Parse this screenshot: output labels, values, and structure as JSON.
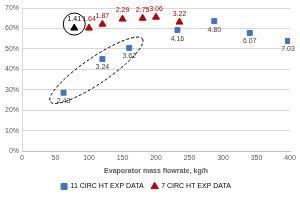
{
  "chart_data": {
    "type": "scatter",
    "xlabel": "Evaporator mass flowrate, kg/h",
    "xlim": [
      0,
      400
    ],
    "xticks": [
      0,
      50,
      100,
      150,
      200,
      250,
      300,
      350,
      400
    ],
    "ylim": [
      0,
      70
    ],
    "yticks": [
      {
        "value": 0,
        "label": "0%"
      },
      {
        "value": 10,
        "label": "10%"
      },
      {
        "value": 20,
        "label": "20%"
      },
      {
        "value": 30,
        "label": "30%"
      },
      {
        "value": 40,
        "label": "40%"
      },
      {
        "value": 50,
        "label": "50%"
      },
      {
        "value": 60,
        "label": "60%"
      },
      {
        "value": 70,
        "label": "70%"
      }
    ],
    "grid": "y",
    "legend": "bottom",
    "series": [
      {
        "name": "11 CIRC HT EXP DATA",
        "color": "#4472c4",
        "marker": "square",
        "x": [
          62,
          120,
          160,
          232,
          287,
          340,
          397
        ],
        "values": [
          28.6,
          45.1,
          50.5,
          59.2,
          63.6,
          57.8,
          53.9
        ],
        "point_labels": [
          "2.43",
          "3.24",
          "3.62",
          "4.16",
          "4.80",
          "6.07",
          "7.03"
        ]
      },
      {
        "name": "7 CIRC HT EXP DATA",
        "color": "#c00000",
        "marker": "triangle",
        "colors": [
          "#000000",
          "#c00000",
          "#c00000",
          "#c00000",
          "#c00000",
          "#c00000",
          "#c00000"
        ],
        "x": [
          78,
          100,
          120,
          150,
          180,
          200,
          235
        ],
        "values": [
          60.2,
          60.2,
          62.1,
          64.6,
          65.0,
          65.5,
          63.1
        ],
        "point_labels": [
          "1.41",
          "1.64",
          "1.87",
          "2.29",
          "2.75",
          "3.06",
          "3.22"
        ]
      }
    ]
  }
}
